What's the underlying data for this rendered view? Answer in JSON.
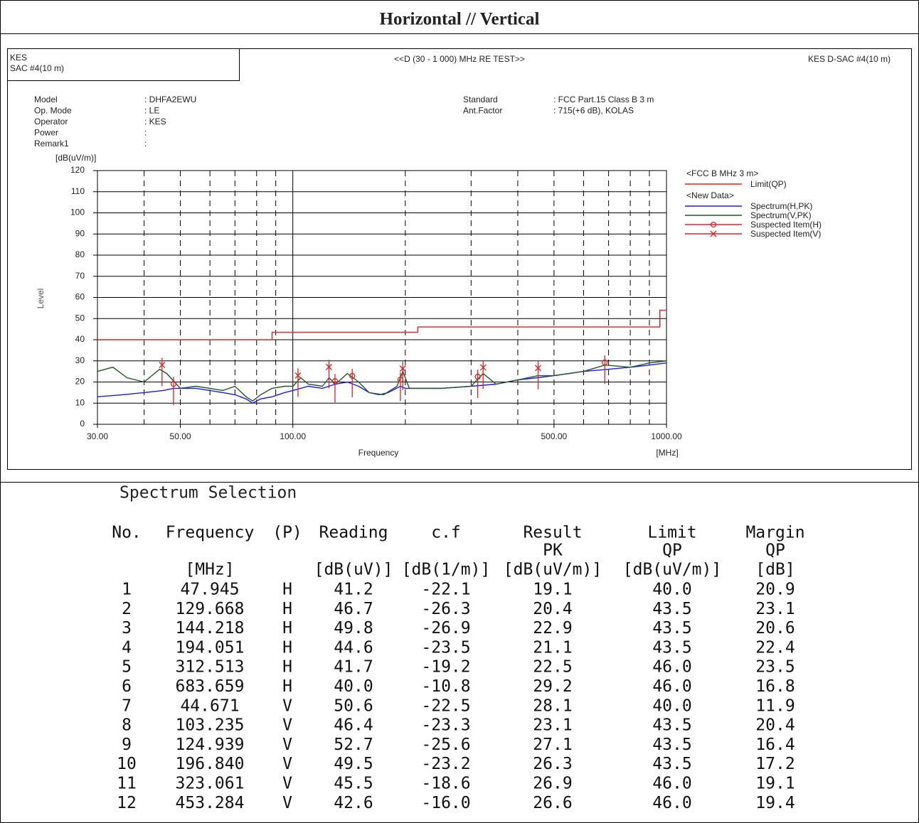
{
  "header": {
    "title": "Horizontal // Vertical"
  },
  "report": {
    "left_header": [
      "KES",
      "SAC #4(10 m)"
    ],
    "center_header": "<<D (30 - 1 000) MHz RE TEST>>",
    "right_header": "KES D-SAC #4(10 m)",
    "info_left": [
      {
        "label": "Model",
        "value": ": DHFA2EWU"
      },
      {
        "label": "Op. Mode",
        "value": ": LE"
      },
      {
        "label": "Operator",
        "value": ": KES"
      },
      {
        "label": "Power",
        "value": ":"
      },
      {
        "label": "Remark1",
        "value": ":"
      }
    ],
    "info_right": [
      {
        "label": "Standard",
        "value": ": FCC Part.15 Class B 3 m"
      },
      {
        "label": "Ant.Factor",
        "value": ": 715(+6 dB), KOLAS"
      }
    ]
  },
  "chart_data": {
    "type": "line",
    "ylabel": "Level",
    "yunit": "[dB(uV/m)]",
    "xlabel": "Frequency",
    "xunit": "[MHz]",
    "xscale": "log",
    "xlim": [
      30,
      1000
    ],
    "ylim": [
      0,
      120
    ],
    "yticks": [
      0,
      10,
      20,
      30,
      40,
      50,
      60,
      70,
      80,
      90,
      100,
      110,
      120
    ],
    "xticks": [
      {
        "value": 30,
        "label": "30.00"
      },
      {
        "value": 50,
        "label": "50.00"
      },
      {
        "value": 100,
        "label": "100.00"
      },
      {
        "value": 500,
        "label": "500.00"
      },
      {
        "value": 1000,
        "label": "1000.00"
      }
    ],
    "xgrid": [
      40,
      50,
      60,
      70,
      80,
      90,
      100,
      200,
      300,
      400,
      500,
      600,
      700,
      800,
      900
    ],
    "xgrid_solid": [
      100
    ],
    "grid": true,
    "legend_groups": [
      "<FCC B MHz 3 m>",
      "<New Data>"
    ],
    "series": [
      {
        "name": "Limit(QP)",
        "color": "#e02020",
        "group": 0,
        "x": [
          30,
          88,
          88,
          216,
          216,
          960,
          960,
          1000
        ],
        "values": [
          40,
          40,
          43.5,
          43.5,
          46,
          46,
          54,
          54
        ]
      },
      {
        "name": "Spectrum(H,PK)",
        "color": "#1a1aff",
        "group": 1,
        "x": [
          30,
          35,
          40,
          45,
          48,
          55,
          60,
          65,
          70,
          75,
          78,
          82,
          88,
          95,
          100,
          110,
          120,
          130,
          140,
          150,
          160,
          170,
          180,
          194,
          200,
          250,
          300,
          350,
          400,
          450,
          500,
          600,
          700,
          800,
          900,
          1000
        ],
        "values": [
          13,
          14,
          15,
          16,
          17,
          17,
          16,
          15,
          14,
          12,
          10,
          12,
          13,
          15,
          16,
          18,
          17,
          19,
          20,
          18,
          15,
          14,
          15,
          18,
          17,
          17,
          18,
          19,
          21,
          22,
          23,
          25,
          26,
          27,
          28,
          29
        ]
      },
      {
        "name": "Spectrum(V,PK)",
        "color": "#1f5a1f",
        "group": 1,
        "x": [
          30,
          33,
          36,
          40,
          44,
          46,
          50,
          55,
          60,
          65,
          70,
          75,
          78,
          82,
          88,
          95,
          100,
          105,
          110,
          120,
          125,
          130,
          140,
          150,
          160,
          175,
          190,
          197,
          205,
          250,
          300,
          323,
          350,
          400,
          453,
          500,
          600,
          684,
          800,
          900,
          1000
        ],
        "values": [
          25,
          27,
          22,
          20,
          26,
          24,
          17,
          18,
          17,
          16,
          18,
          13,
          11,
          14,
          17,
          18,
          18,
          22,
          19,
          18,
          22,
          19,
          24,
          20,
          15,
          14,
          18,
          25,
          17,
          17,
          18,
          24,
          19,
          21,
          23,
          23,
          25,
          28,
          27,
          29,
          30
        ]
      },
      {
        "name": "Suspected Item(H)",
        "color": "#e02020",
        "group": 1,
        "marker": "circle",
        "x": [
          47.945,
          129.668,
          144.218,
          194.051,
          312.513,
          683.659
        ],
        "values": [
          19.1,
          20.4,
          22.9,
          21.1,
          22.5,
          29.2
        ]
      },
      {
        "name": "Suspected Item(V)",
        "color": "#e02020",
        "group": 1,
        "marker": "x",
        "x": [
          44.671,
          103.235,
          124.939,
          196.84,
          323.061,
          453.284
        ],
        "values": [
          28.1,
          23.1,
          27.1,
          26.3,
          26.9,
          26.6
        ]
      }
    ]
  },
  "table": {
    "title": "Spectrum Selection",
    "columns": [
      {
        "name": "No."
      },
      {
        "name": "Frequency",
        "unit": "[MHz]"
      },
      {
        "name": "(P)"
      },
      {
        "name": "Reading",
        "unit": "[dB(uV)]"
      },
      {
        "name": "c.f",
        "unit": "[dB(1/m)]"
      },
      {
        "name": "Result",
        "detector": "PK",
        "unit": "[dB(uV/m)]"
      },
      {
        "name": "Limit",
        "detector": "QP",
        "unit": "[dB(uV/m)]"
      },
      {
        "name": "Margin",
        "detector": "QP",
        "unit": "[dB]"
      }
    ],
    "rows": [
      [
        "1",
        "47.945",
        "H",
        "41.2",
        "-22.1",
        "19.1",
        "40.0",
        "20.9"
      ],
      [
        "2",
        "129.668",
        "H",
        "46.7",
        "-26.3",
        "20.4",
        "43.5",
        "23.1"
      ],
      [
        "3",
        "144.218",
        "H",
        "49.8",
        "-26.9",
        "22.9",
        "43.5",
        "20.6"
      ],
      [
        "4",
        "194.051",
        "H",
        "44.6",
        "-23.5",
        "21.1",
        "43.5",
        "22.4"
      ],
      [
        "5",
        "312.513",
        "H",
        "41.7",
        "-19.2",
        "22.5",
        "46.0",
        "23.5"
      ],
      [
        "6",
        "683.659",
        "H",
        "40.0",
        "-10.8",
        "29.2",
        "46.0",
        "16.8"
      ],
      [
        "7",
        "44.671",
        "V",
        "50.6",
        "-22.5",
        "28.1",
        "40.0",
        "11.9"
      ],
      [
        "8",
        "103.235",
        "V",
        "46.4",
        "-23.3",
        "23.1",
        "43.5",
        "20.4"
      ],
      [
        "9",
        "124.939",
        "V",
        "52.7",
        "-25.6",
        "27.1",
        "43.5",
        "16.4"
      ],
      [
        "10",
        "196.840",
        "V",
        "49.5",
        "-23.2",
        "26.3",
        "43.5",
        "17.2"
      ],
      [
        "11",
        "323.061",
        "V",
        "45.5",
        "-18.6",
        "26.9",
        "46.0",
        "19.1"
      ],
      [
        "12",
        "453.284",
        "V",
        "42.6",
        "-16.0",
        "26.6",
        "46.0",
        "19.4"
      ]
    ]
  }
}
